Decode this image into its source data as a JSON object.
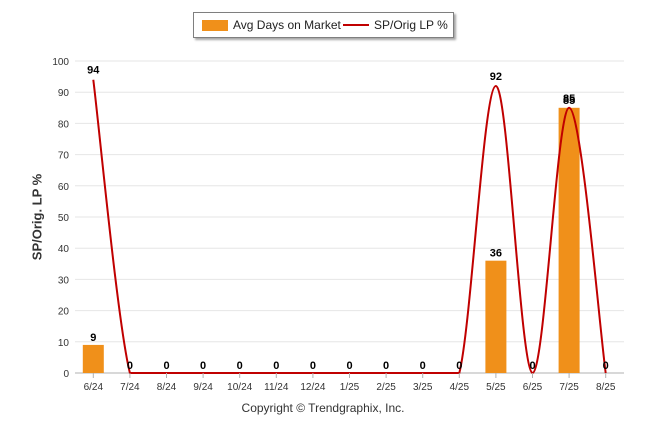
{
  "colors": {
    "bar": "#f0901a",
    "line": "#c00000",
    "grid": "#e6e6e6",
    "axis": "#b0b0b0"
  },
  "copyright": "Copyright © Trendgraphix, Inc.",
  "chart_data": {
    "type": "bar",
    "categories": [
      "6/24",
      "7/24",
      "8/24",
      "9/24",
      "10/24",
      "11/24",
      "12/24",
      "1/25",
      "2/25",
      "3/25",
      "4/25",
      "5/25",
      "6/25",
      "7/25",
      "8/25"
    ],
    "series": [
      {
        "name": "Avg Days on Market",
        "type": "bar",
        "values": [
          9,
          0,
          0,
          0,
          0,
          0,
          0,
          0,
          0,
          0,
          0,
          36,
          0,
          85,
          0
        ]
      },
      {
        "name": "SP/Orig LP %",
        "type": "line",
        "values": [
          94,
          0,
          0,
          0,
          0,
          0,
          0,
          0,
          0,
          0,
          0,
          92,
          0,
          85,
          0
        ]
      }
    ],
    "data_labels": [
      "9",
      "0",
      "0",
      "0",
      "0",
      "0",
      "0",
      "0",
      "0",
      "0",
      "0",
      "36",
      "0",
      "85",
      "0"
    ],
    "line_labels": [
      {
        "index": 0,
        "text": "94"
      },
      {
        "index": 11,
        "text": "92"
      },
      {
        "index": 13,
        "text": "85"
      }
    ],
    "ylabel": "SP/Orig. LP %",
    "ylim": [
      0,
      100
    ],
    "yticks": [
      0,
      10,
      20,
      30,
      40,
      50,
      60,
      70,
      80,
      90,
      100
    ],
    "grid": true,
    "legend_position": "top-center"
  }
}
